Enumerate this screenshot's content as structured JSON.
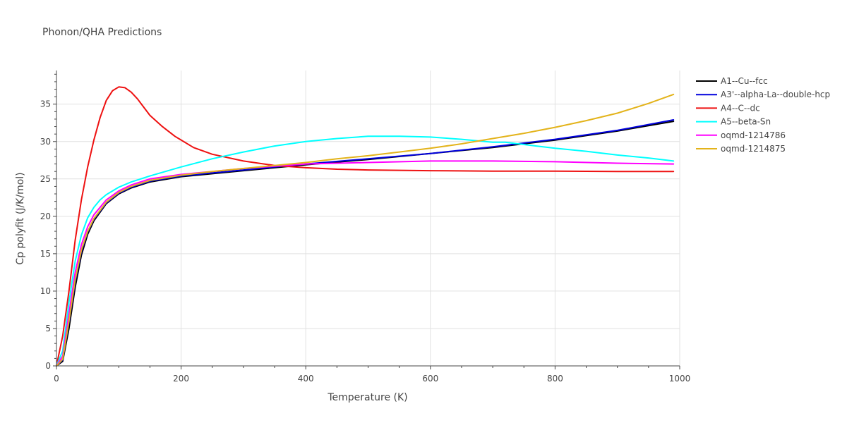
{
  "chart_data": {
    "type": "line",
    "title": "Phonon/QHA Predictions",
    "xlabel": "Temperature (K)",
    "ylabel": "Cp polyfit (J/K/mol)",
    "xlim": [
      0,
      1000
    ],
    "ylim": [
      0,
      39.5
    ],
    "xticks": [
      0,
      200,
      400,
      600,
      800,
      1000
    ],
    "xtick_labels": [
      "0",
      "200",
      "400",
      "600",
      "800",
      "1000"
    ],
    "yticks": [
      0,
      5,
      10,
      15,
      20,
      25,
      30,
      35
    ],
    "ytick_labels": [
      "0",
      "5",
      "10",
      "15",
      "20",
      "25",
      "30",
      "35"
    ],
    "grid": true,
    "legend_position": "top-right",
    "series": [
      {
        "name": "A1--Cu--fcc",
        "color": "#000000",
        "x": [
          0,
          10,
          20,
          30,
          40,
          50,
          60,
          80,
          100,
          120,
          150,
          200,
          250,
          300,
          350,
          400,
          500,
          600,
          700,
          800,
          900,
          990
        ],
        "y": [
          0,
          0.6,
          5.0,
          10.5,
          14.8,
          17.6,
          19.4,
          21.7,
          23.0,
          23.8,
          24.6,
          25.3,
          25.7,
          26.1,
          26.5,
          26.9,
          27.6,
          28.4,
          29.2,
          30.2,
          31.4,
          32.7
        ]
      },
      {
        "name": "A3'--alpha-La--double-hcp",
        "color": "#0000dd",
        "x": [
          0,
          10,
          20,
          30,
          40,
          50,
          60,
          80,
          100,
          120,
          150,
          200,
          250,
          300,
          350,
          400,
          500,
          600,
          700,
          800,
          900,
          990
        ],
        "y": [
          0,
          0.8,
          5.8,
          11.2,
          15.3,
          17.9,
          19.6,
          21.8,
          23.1,
          23.9,
          24.7,
          25.4,
          25.8,
          26.2,
          26.6,
          27.0,
          27.7,
          28.4,
          29.3,
          30.3,
          31.5,
          32.9
        ]
      },
      {
        "name": "A4--C--dc",
        "color": "#ee1111",
        "x": [
          0,
          10,
          20,
          30,
          40,
          50,
          60,
          70,
          80,
          90,
          100,
          110,
          120,
          130,
          140,
          150,
          170,
          190,
          220,
          250,
          300,
          350,
          400,
          450,
          500,
          600,
          700,
          800,
          900,
          990
        ],
        "y": [
          0,
          4.0,
          10.0,
          16.8,
          22.2,
          26.6,
          30.2,
          33.2,
          35.5,
          36.8,
          37.3,
          37.2,
          36.6,
          35.7,
          34.6,
          33.5,
          32.0,
          30.7,
          29.2,
          28.3,
          27.4,
          26.8,
          26.5,
          26.3,
          26.2,
          26.1,
          26.05,
          26.05,
          26.0,
          26.0
        ]
      },
      {
        "name": "A5--beta-Sn",
        "color": "#00ffff",
        "x": [
          0,
          10,
          20,
          30,
          40,
          50,
          60,
          70,
          80,
          100,
          120,
          150,
          200,
          250,
          300,
          350,
          400,
          450,
          500,
          550,
          600,
          650,
          700,
          720,
          750,
          800,
          850,
          900,
          950,
          990
        ],
        "y": [
          0,
          2.0,
          8.5,
          14.0,
          17.5,
          19.8,
          21.2,
          22.2,
          22.9,
          23.9,
          24.6,
          25.4,
          26.6,
          27.7,
          28.6,
          29.4,
          30.0,
          30.4,
          30.7,
          30.7,
          30.6,
          30.3,
          29.9,
          29.9,
          29.6,
          29.1,
          28.7,
          28.2,
          27.8,
          27.4
        ]
      },
      {
        "name": "oqmd-1214786",
        "color": "#ff00ff",
        "x": [
          0,
          10,
          20,
          30,
          40,
          50,
          60,
          80,
          100,
          120,
          150,
          200,
          250,
          300,
          350,
          400,
          500,
          600,
          700,
          800,
          900,
          990
        ],
        "y": [
          0,
          1.3,
          7.0,
          12.5,
          16.2,
          18.6,
          20.2,
          22.2,
          23.4,
          24.2,
          25.0,
          25.6,
          26.0,
          26.4,
          26.7,
          27.0,
          27.2,
          27.4,
          27.4,
          27.3,
          27.1,
          27.0
        ]
      },
      {
        "name": "oqmd-1214875",
        "color": "#e3b31a",
        "x": [
          0,
          10,
          20,
          30,
          40,
          50,
          60,
          80,
          100,
          120,
          150,
          200,
          250,
          300,
          350,
          400,
          450,
          500,
          550,
          600,
          650,
          700,
          750,
          800,
          850,
          900,
          950,
          990
        ],
        "y": [
          0,
          0.9,
          6.0,
          11.5,
          15.5,
          18.0,
          19.7,
          21.9,
          23.2,
          24.0,
          24.8,
          25.5,
          26.0,
          26.4,
          26.8,
          27.2,
          27.7,
          28.1,
          28.6,
          29.1,
          29.7,
          30.4,
          31.1,
          31.9,
          32.8,
          33.8,
          35.1,
          36.3
        ]
      }
    ]
  }
}
